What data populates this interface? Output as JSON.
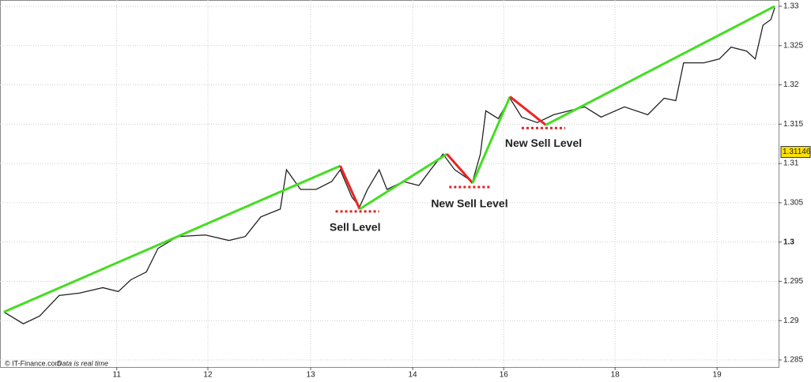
{
  "chart_data": {
    "type": "line",
    "credit": "© IT-Finance.com",
    "credit_note": "Data is real time",
    "xlim": [
      0,
      100
    ],
    "xticks": [
      {
        "value": 15.0,
        "label": "11"
      },
      {
        "value": 26.7,
        "label": "12"
      },
      {
        "value": 39.9,
        "label": "13"
      },
      {
        "value": 53.0,
        "label": "14"
      },
      {
        "value": 64.7,
        "label": "16"
      },
      {
        "value": 79.0,
        "label": "18"
      },
      {
        "value": 92.1,
        "label": "19"
      }
    ],
    "ylim": [
      1.2841,
      1.3308
    ],
    "yticks": [
      1.33,
      1.325,
      1.32,
      1.315,
      1.31,
      1.305,
      1.3,
      1.295,
      1.29,
      1.285
    ],
    "grid": true,
    "color": "#222222",
    "x": [
      0.5,
      3.0,
      5.1,
      7.6,
      10.2,
      13.2,
      15.2,
      16.8,
      18.8,
      20.3,
      22.8,
      26.4,
      29.4,
      31.5,
      33.5,
      36.0,
      36.8,
      38.6,
      40.6,
      42.6,
      43.7,
      45.2,
      46.2,
      47.2,
      48.7,
      49.7,
      51.8,
      53.8,
      55.3,
      56.9,
      58.4,
      59.9,
      60.7,
      61.7,
      62.4,
      64.0,
      65.5,
      67.0,
      69.0,
      71.1,
      73.1,
      75.1,
      77.2,
      80.2,
      83.2,
      85.3,
      86.8,
      87.8,
      90.4,
      92.4,
      93.9,
      95.9,
      97.0,
      98.0,
      99.0,
      99.5
    ],
    "values": [
      1.2911,
      1.2896,
      1.2906,
      1.2932,
      1.2935,
      1.2942,
      1.2937,
      1.2952,
      1.2962,
      1.2992,
      1.3007,
      1.3009,
      1.3002,
      1.3007,
      1.3032,
      1.3042,
      1.3092,
      1.3067,
      1.3067,
      1.3077,
      1.3092,
      1.3057,
      1.3045,
      1.3067,
      1.3092,
      1.3067,
      1.3077,
      1.3072,
      1.3092,
      1.3112,
      1.3092,
      1.3082,
      1.3077,
      1.3112,
      1.3167,
      1.3157,
      1.3183,
      1.3159,
      1.3152,
      1.3162,
      1.3167,
      1.3172,
      1.3159,
      1.3172,
      1.3162,
      1.3183,
      1.318,
      1.3228,
      1.3228,
      1.3233,
      1.3248,
      1.3243,
      1.3233,
      1.3276,
      1.3283,
      1.3298
    ],
    "last_price": 1.31146,
    "last_price_color": "#ffe000",
    "overlays": [
      {
        "color": "#44dd22",
        "x": [
          0.5,
          43.7
        ],
        "values": [
          1.2911,
          1.3097
        ]
      },
      {
        "color": "#ee2222",
        "x": [
          43.7,
          46.2
        ],
        "values": [
          1.3097,
          1.3042
        ]
      },
      {
        "color": "#44dd22",
        "x": [
          46.2,
          57.4
        ],
        "values": [
          1.3042,
          1.3112
        ]
      },
      {
        "color": "#ee2222",
        "x": [
          57.4,
          60.7
        ],
        "values": [
          1.3112,
          1.3075
        ]
      },
      {
        "color": "#44dd22",
        "x": [
          60.7,
          65.5
        ],
        "values": [
          1.3075,
          1.3185
        ]
      },
      {
        "color": "#ee2222",
        "x": [
          65.5,
          70.1
        ],
        "values": [
          1.3185,
          1.3149
        ]
      },
      {
        "color": "#44dd22",
        "x": [
          70.1,
          99.5
        ],
        "values": [
          1.3149,
          1.33
        ]
      }
    ],
    "levels": [
      {
        "color": "#dd2222",
        "x": [
          43.1,
          48.7
        ],
        "values": [
          1.3039,
          1.3039
        ]
      },
      {
        "color": "#dd2222",
        "x": [
          57.7,
          62.9
        ],
        "values": [
          1.307,
          1.307
        ]
      },
      {
        "color": "#dd2222",
        "x": [
          67.0,
          72.6
        ],
        "values": [
          1.3145,
          1.3145
        ]
      }
    ],
    "annotations": [
      {
        "text": "Sell Level",
        "x": 45.6,
        "y": 1.3018
      },
      {
        "text": "New Sell Level",
        "x": 60.3,
        "y": 1.3048
      },
      {
        "text": "New Sell Level",
        "x": 69.8,
        "y": 1.3125
      }
    ]
  }
}
